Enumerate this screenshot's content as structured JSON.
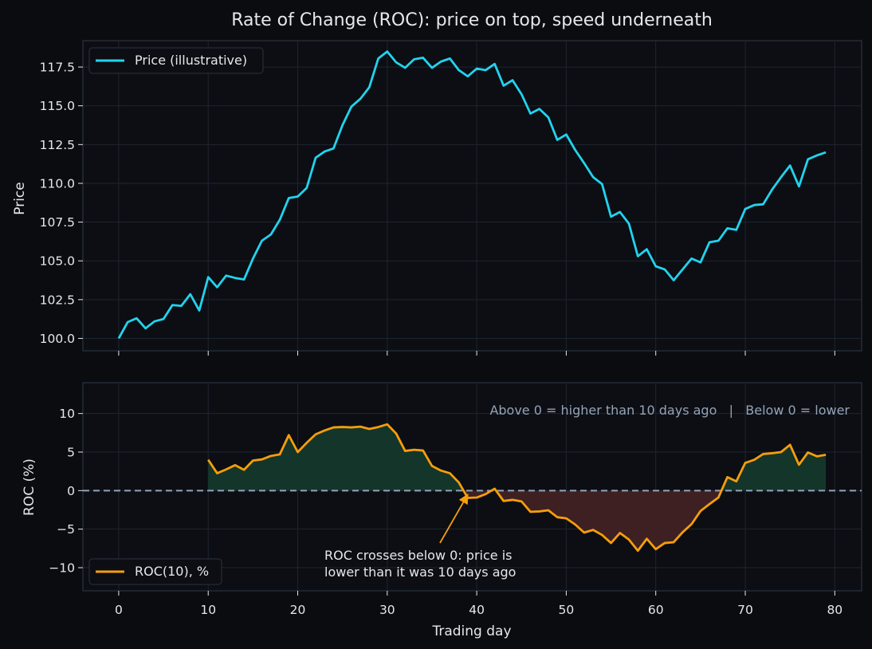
{
  "chart_data": {
    "title": "Rate of Change (ROC): price on top, speed underneath",
    "xlabel": "Trading day",
    "x_ticks": [
      0,
      10,
      20,
      30,
      40,
      50,
      60,
      70,
      80
    ],
    "xlim": [
      -4,
      83
    ],
    "panels": [
      {
        "type": "line",
        "ylabel": "Price",
        "ylim": [
          99.2,
          119.2
        ],
        "y_ticks": [
          100.0,
          102.5,
          105.0,
          107.5,
          110.0,
          112.5,
          115.0,
          117.5
        ],
        "legend_position": "top-left",
        "grid": true,
        "series": [
          {
            "name": "Price (illustrative)",
            "color": "#22d3ee",
            "start_x": 0,
            "values": [
              100.0,
              101.05,
              101.3,
              100.65,
              101.1,
              101.25,
              102.15,
              102.1,
              102.85,
              101.8,
              103.95,
              103.3,
              104.05,
              103.9,
              103.8,
              105.15,
              106.3,
              106.7,
              107.65,
              109.05,
              109.15,
              109.7,
              111.65,
              112.05,
              112.25,
              113.75,
              114.95,
              115.45,
              116.2,
              118.05,
              118.5,
              117.8,
              117.45,
              118.0,
              118.1,
              117.45,
              117.85,
              118.05,
              117.3,
              116.9,
              117.4,
              117.3,
              117.7,
              116.3,
              116.65,
              115.75,
              114.5,
              114.8,
              114.25,
              112.8,
              113.15,
              112.15,
              111.3,
              110.4,
              109.95,
              107.85,
              108.15,
              107.4,
              105.3,
              105.75,
              104.65,
              104.45,
              103.75,
              104.45,
              105.15,
              104.9,
              106.2,
              106.3,
              107.1,
              107.0,
              108.35,
              108.6,
              108.65,
              109.6,
              110.4,
              111.15,
              109.8,
              111.55,
              111.8,
              112.0
            ]
          }
        ]
      },
      {
        "type": "area",
        "ylabel": "ROC (%)",
        "ylim": [
          -13,
          14
        ],
        "y_ticks": [
          -10,
          -5,
          0,
          5,
          10
        ],
        "zero_line": true,
        "legend_position": "bottom-left",
        "grid": true,
        "positive_fill": "#14352a",
        "negative_fill": "#3e2022",
        "series": [
          {
            "name": "ROC(10), %",
            "color": "#f59e0b",
            "start_x": 10,
            "values": [
              4.0,
              2.25,
              2.75,
              3.3,
              2.7,
              3.9,
              4.05,
              4.5,
              4.7,
              7.2,
              5.0,
              6.2,
              7.3,
              7.8,
              8.2,
              8.25,
              8.2,
              8.3,
              8.0,
              8.25,
              8.6,
              7.4,
              5.15,
              5.3,
              5.2,
              3.2,
              2.6,
              2.25,
              1.05,
              -0.95,
              -0.9,
              -0.45,
              0.25,
              -1.35,
              -1.2,
              -1.4,
              -2.75,
              -2.7,
              -2.55,
              -3.45,
              -3.6,
              -4.4,
              -5.45,
              -5.1,
              -5.75,
              -6.8,
              -5.5,
              -6.35,
              -7.8,
              -6.25,
              -7.6,
              -6.8,
              -6.7,
              -5.4,
              -4.35,
              -2.65,
              -1.75,
              -0.9,
              1.75,
              1.2,
              3.6,
              4.0,
              4.75,
              4.85,
              5.0,
              5.95,
              3.35,
              4.95,
              4.45,
              4.65
            ]
          }
        ]
      }
    ],
    "annotations": {
      "band_note": "Above 0 = higher than 10 days ago   |   Below 0 = lower",
      "cross_note_line1": "ROC crosses below 0: price is",
      "cross_note_line2": "lower than it was 10 days ago",
      "arrow_target": {
        "x": 39,
        "y": -0.3
      }
    },
    "colors": {
      "background": "#0b0c10",
      "grid": "#1e2530",
      "axis_text": "#e5e7eb",
      "zero_line": "#94a3b8"
    }
  }
}
